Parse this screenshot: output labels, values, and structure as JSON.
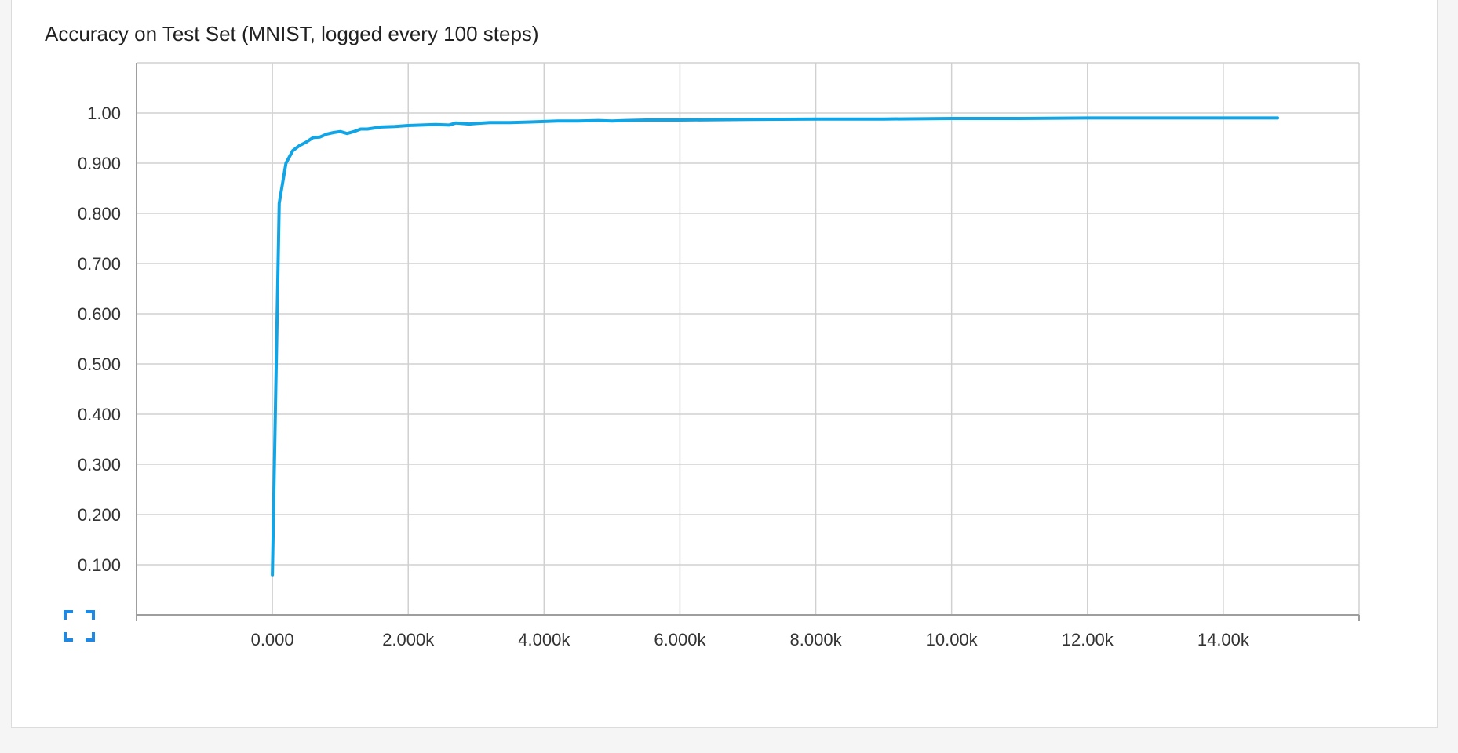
{
  "card": {
    "title": "Accuracy on Test Set (MNIST, logged every 100 steps)",
    "expand_icon": "fullscreen-icon"
  },
  "colors": {
    "series": "#12a5e6",
    "grid": "#d0d0d0",
    "axis": "#9e9e9e",
    "accent": "#1e88e5"
  },
  "chart_data": {
    "type": "line",
    "title": "Accuracy on Test Set (MNIST, logged every 100 steps)",
    "xlabel": "",
    "ylabel": "",
    "xlim": [
      -2000,
      16000
    ],
    "ylim": [
      0,
      1.1
    ],
    "grid": true,
    "x_ticks": [
      0,
      2000,
      4000,
      6000,
      8000,
      10000,
      12000,
      14000
    ],
    "x_tick_labels": [
      "0.000",
      "2.000k",
      "4.000k",
      "6.000k",
      "8.000k",
      "10.00k",
      "12.00k",
      "14.00k"
    ],
    "y_ticks": [
      0.1,
      0.2,
      0.3,
      0.4,
      0.5,
      0.6,
      0.7,
      0.8,
      0.9,
      1.0
    ],
    "y_tick_labels": [
      "0.100",
      "0.200",
      "0.300",
      "0.400",
      "0.500",
      "0.600",
      "0.700",
      "0.800",
      "0.900",
      "1.00"
    ],
    "series": [
      {
        "x": [
          0,
          100,
          200,
          300,
          400,
          500,
          600,
          700,
          800,
          900,
          1000,
          1100,
          1200,
          1300,
          1400,
          1600,
          1800,
          2000,
          2200,
          2400,
          2600,
          2700,
          2900,
          3000,
          3200,
          3500,
          3800,
          4000,
          4200,
          4500,
          4800,
          5000,
          5200,
          5500,
          6000,
          7000,
          8000,
          9000,
          10000,
          11000,
          12000,
          13000,
          14000,
          14500,
          14800
        ],
        "y": [
          0.08,
          0.82,
          0.9,
          0.925,
          0.935,
          0.942,
          0.951,
          0.952,
          0.958,
          0.961,
          0.963,
          0.959,
          0.963,
          0.968,
          0.968,
          0.972,
          0.973,
          0.975,
          0.976,
          0.977,
          0.976,
          0.98,
          0.978,
          0.979,
          0.981,
          0.981,
          0.982,
          0.983,
          0.984,
          0.984,
          0.985,
          0.984,
          0.985,
          0.986,
          0.986,
          0.987,
          0.988,
          0.988,
          0.989,
          0.989,
          0.99,
          0.99,
          0.99,
          0.99,
          0.99
        ]
      }
    ]
  }
}
